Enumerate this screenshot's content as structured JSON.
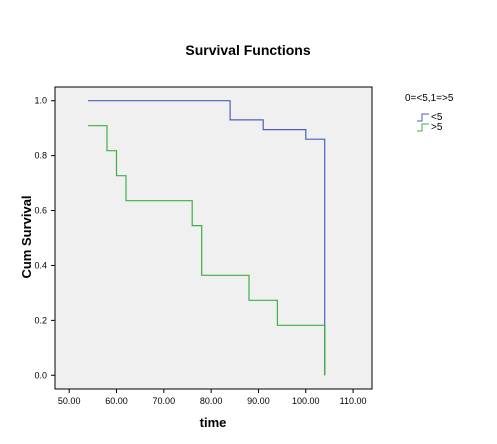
{
  "chart_data": {
    "type": "line",
    "title": "Survival Functions",
    "xlabel": "time",
    "ylabel": "Cum Survival",
    "xlim": [
      47,
      114
    ],
    "ylim": [
      -0.05,
      1.05
    ],
    "x_ticks": [
      50,
      60,
      70,
      80,
      90,
      100,
      110
    ],
    "x_tick_labels": [
      "50.00",
      "60.00",
      "70.00",
      "80.00",
      "90.00",
      "100.00",
      "110.00"
    ],
    "y_ticks": [
      0,
      0.2,
      0.4,
      0.6,
      0.8,
      1.0
    ],
    "y_tick_labels": [
      "0.0",
      "0.2",
      "0.4",
      "0.6",
      "0.8",
      "1.0"
    ],
    "grid": false,
    "plot_background": "#f0f0f0",
    "legend": {
      "title": "0=<5,1=>5",
      "position": "right"
    },
    "series": [
      {
        "name": "<5",
        "color": "#4a5fc1",
        "steps": [
          [
            54,
            1.0
          ],
          [
            84,
            0.93
          ],
          [
            91,
            0.895
          ],
          [
            100,
            0.86
          ],
          [
            104,
            0.0
          ]
        ]
      },
      {
        "name": ">5",
        "color": "#3cb043",
        "steps": [
          [
            54,
            0.909
          ],
          [
            58,
            0.818
          ],
          [
            60,
            0.727
          ],
          [
            62,
            0.636
          ],
          [
            76,
            0.545
          ],
          [
            78,
            0.364
          ],
          [
            88,
            0.273
          ],
          [
            94,
            0.182
          ],
          [
            104,
            0.0
          ]
        ]
      }
    ]
  }
}
